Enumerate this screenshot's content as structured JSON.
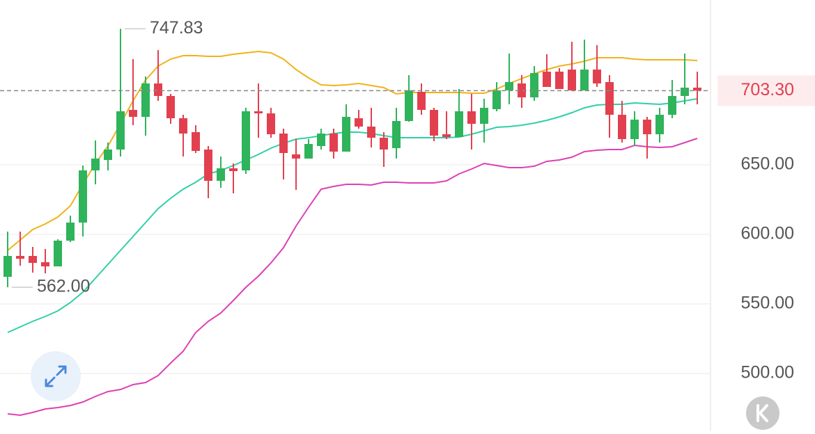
{
  "chart_data": {
    "type": "candlestick",
    "open": [
      569.5,
      584.5,
      584.5,
      580,
      577,
      595.5,
      608.5,
      646,
      653.5,
      661,
      689.5,
      684.5,
      708.5,
      699.5,
      683.5,
      673.5,
      661,
      638.5,
      647.5,
      646,
      688.5,
      687,
      672.5,
      657.5,
      654.5,
      663.5,
      672.5,
      659.5,
      683.5,
      677.5,
      669.5,
      662,
      681.5,
      702.5,
      689.5,
      672,
      670,
      688.5,
      679.5,
      690,
      703.5,
      708.5,
      698.5,
      717,
      717,
      718.5,
      703.5,
      718.5,
      709.5,
      686,
      668.5,
      682.5,
      672,
      686,
      699.5,
      705.5
    ],
    "high": [
      602,
      602,
      591,
      589.5,
      596.5,
      613.5,
      649.5,
      667.5,
      666,
      747.83,
      726,
      713.5,
      732.5,
      701,
      686,
      678.5,
      663.5,
      656,
      651,
      691,
      708.5,
      691,
      676,
      668.5,
      668.5,
      676,
      676,
      693.5,
      689.5,
      691,
      673.5,
      691,
      714.5,
      708.5,
      691,
      688.5,
      704.5,
      701,
      697.5,
      709.5,
      730,
      714.5,
      721,
      729.5,
      719.5,
      738.5,
      740,
      736,
      714.5,
      696,
      688.5,
      684.5,
      691,
      711,
      730,
      717
    ],
    "low": [
      562,
      577.5,
      572.5,
      572,
      577,
      594.5,
      598.5,
      636,
      646,
      656,
      678.5,
      671,
      696,
      679.5,
      656,
      658.5,
      626,
      633.5,
      629.5,
      643.5,
      669.5,
      669.5,
      639.5,
      632,
      654.5,
      661,
      654.5,
      659.5,
      676,
      662.5,
      648.5,
      654.5,
      681,
      686,
      667,
      668.5,
      670,
      661,
      666,
      688.5,
      693.5,
      691,
      696,
      706,
      704.5,
      703.5,
      703.5,
      706,
      669.5,
      666,
      663.5,
      654.5,
      666,
      683.5,
      693.5,
      693.5
    ],
    "close": [
      584.5,
      582.5,
      579.5,
      577,
      595.5,
      608.5,
      646,
      654.5,
      661,
      688.5,
      684.5,
      708.5,
      699.5,
      683.5,
      672.5,
      660,
      638.5,
      647.5,
      645.5,
      688.5,
      687,
      672,
      658.5,
      654.5,
      665,
      672.5,
      659.5,
      684.5,
      677.5,
      669.5,
      661,
      681.5,
      703.5,
      689.5,
      671,
      670,
      688.5,
      679.5,
      691,
      703.5,
      709.5,
      698.5,
      716,
      706,
      704.5,
      703.5,
      718.5,
      708.5,
      686,
      668.5,
      682.5,
      672,
      686,
      699.5,
      705.5,
      703.3
    ],
    "up_color": "#2fb35b",
    "down_color": "#e2404f",
    "bands": [
      {
        "color": "#f0b21a",
        "values": [
          588.5,
          596,
          603.5,
          607.5,
          612.5,
          620.5,
          636,
          651,
          663.5,
          679.5,
          696,
          711,
          721,
          726,
          728.5,
          728.5,
          728,
          728,
          729.5,
          730.5,
          731.5,
          730.5,
          726,
          718.5,
          712.5,
          707.5,
          707,
          707.5,
          708.5,
          707,
          705.5,
          701,
          702,
          702,
          702,
          702,
          702,
          701.5,
          701.5,
          704.5,
          708.5,
          712,
          715.5,
          718.5,
          721,
          722.5,
          724.5,
          727,
          727,
          727,
          726,
          725.5,
          725.5,
          725.5,
          725.5,
          725
        ]
      },
      {
        "color": "#2fcfa8",
        "values": [
          529.5,
          533.5,
          537.5,
          541,
          545,
          551,
          558.5,
          568.5,
          578.5,
          588.5,
          598.5,
          608.5,
          618.5,
          626,
          632.5,
          637.5,
          643.5,
          646,
          649.5,
          653.5,
          657.5,
          662,
          665.5,
          668.5,
          669.5,
          671,
          672.5,
          673.5,
          673.5,
          672.5,
          671,
          669.5,
          669.5,
          669.5,
          669.5,
          669.5,
          670,
          672,
          674.5,
          677,
          677.5,
          678.5,
          680,
          682,
          684.5,
          687.5,
          691,
          693,
          693.5,
          693.5,
          694.5,
          694,
          693.5,
          694.5,
          696,
          697.5
        ]
      },
      {
        "color": "#de3fb4",
        "values": [
          471,
          470,
          472,
          474.5,
          475.5,
          477,
          479.5,
          483.5,
          487,
          488.5,
          492,
          493.5,
          498.5,
          507.5,
          516,
          529.5,
          537.5,
          543.5,
          552.5,
          562,
          570,
          579.5,
          590.5,
          606,
          619.5,
          632.5,
          634.5,
          636,
          636,
          635.5,
          637.5,
          637.5,
          637,
          637,
          637,
          638.5,
          643.5,
          647,
          651,
          649.5,
          648,
          648,
          649,
          652.5,
          653.5,
          655.5,
          659.5,
          660.5,
          661,
          661,
          664,
          663,
          662.5,
          663,
          666,
          669
        ]
      }
    ],
    "ylim": [
      459,
      768.5
    ],
    "yticks": [
      {
        "value": 500,
        "label": "500.00"
      },
      {
        "value": 550,
        "label": "550.00"
      },
      {
        "value": 600,
        "label": "600.00"
      },
      {
        "value": 650,
        "label": "650.00"
      }
    ],
    "grid": true,
    "high_label": {
      "value": 747.83,
      "label": "747.83"
    },
    "low_label": {
      "value": 562,
      "label": "562.00"
    },
    "last_price": {
      "value": 703.3,
      "label": "703.30"
    }
  }
}
